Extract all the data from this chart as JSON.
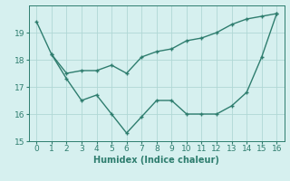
{
  "line1_x": [
    0,
    1,
    2,
    3,
    4,
    5,
    6,
    7,
    8,
    9,
    10,
    11,
    12,
    13,
    14,
    15,
    16
  ],
  "line1_y": [
    19.4,
    18.2,
    17.3,
    16.5,
    16.7,
    16.0,
    15.3,
    15.9,
    16.5,
    16.5,
    16.0,
    16.0,
    16.0,
    16.3,
    16.8,
    18.1,
    19.7
  ],
  "line2_x": [
    1,
    2,
    3,
    4,
    5,
    6,
    7,
    8,
    9,
    10,
    11,
    12,
    13,
    14,
    15,
    16
  ],
  "line2_y": [
    18.2,
    17.5,
    17.6,
    17.6,
    17.8,
    17.5,
    18.1,
    18.3,
    18.4,
    18.7,
    18.8,
    19.0,
    19.3,
    19.5,
    19.6,
    19.7
  ],
  "color": "#2e7d6e",
  "bg_color": "#d6f0ef",
  "grid_color": "#b0d8d5",
  "xlabel": "Humidex (Indice chaleur)",
  "xlim": [
    -0.5,
    16.5
  ],
  "ylim": [
    15,
    20
  ],
  "yticks": [
    15,
    16,
    17,
    18,
    19
  ],
  "xticks": [
    0,
    1,
    2,
    3,
    4,
    5,
    6,
    7,
    8,
    9,
    10,
    11,
    12,
    13,
    14,
    15,
    16
  ],
  "xlabel_fontsize": 7,
  "tick_fontsize": 6.5
}
